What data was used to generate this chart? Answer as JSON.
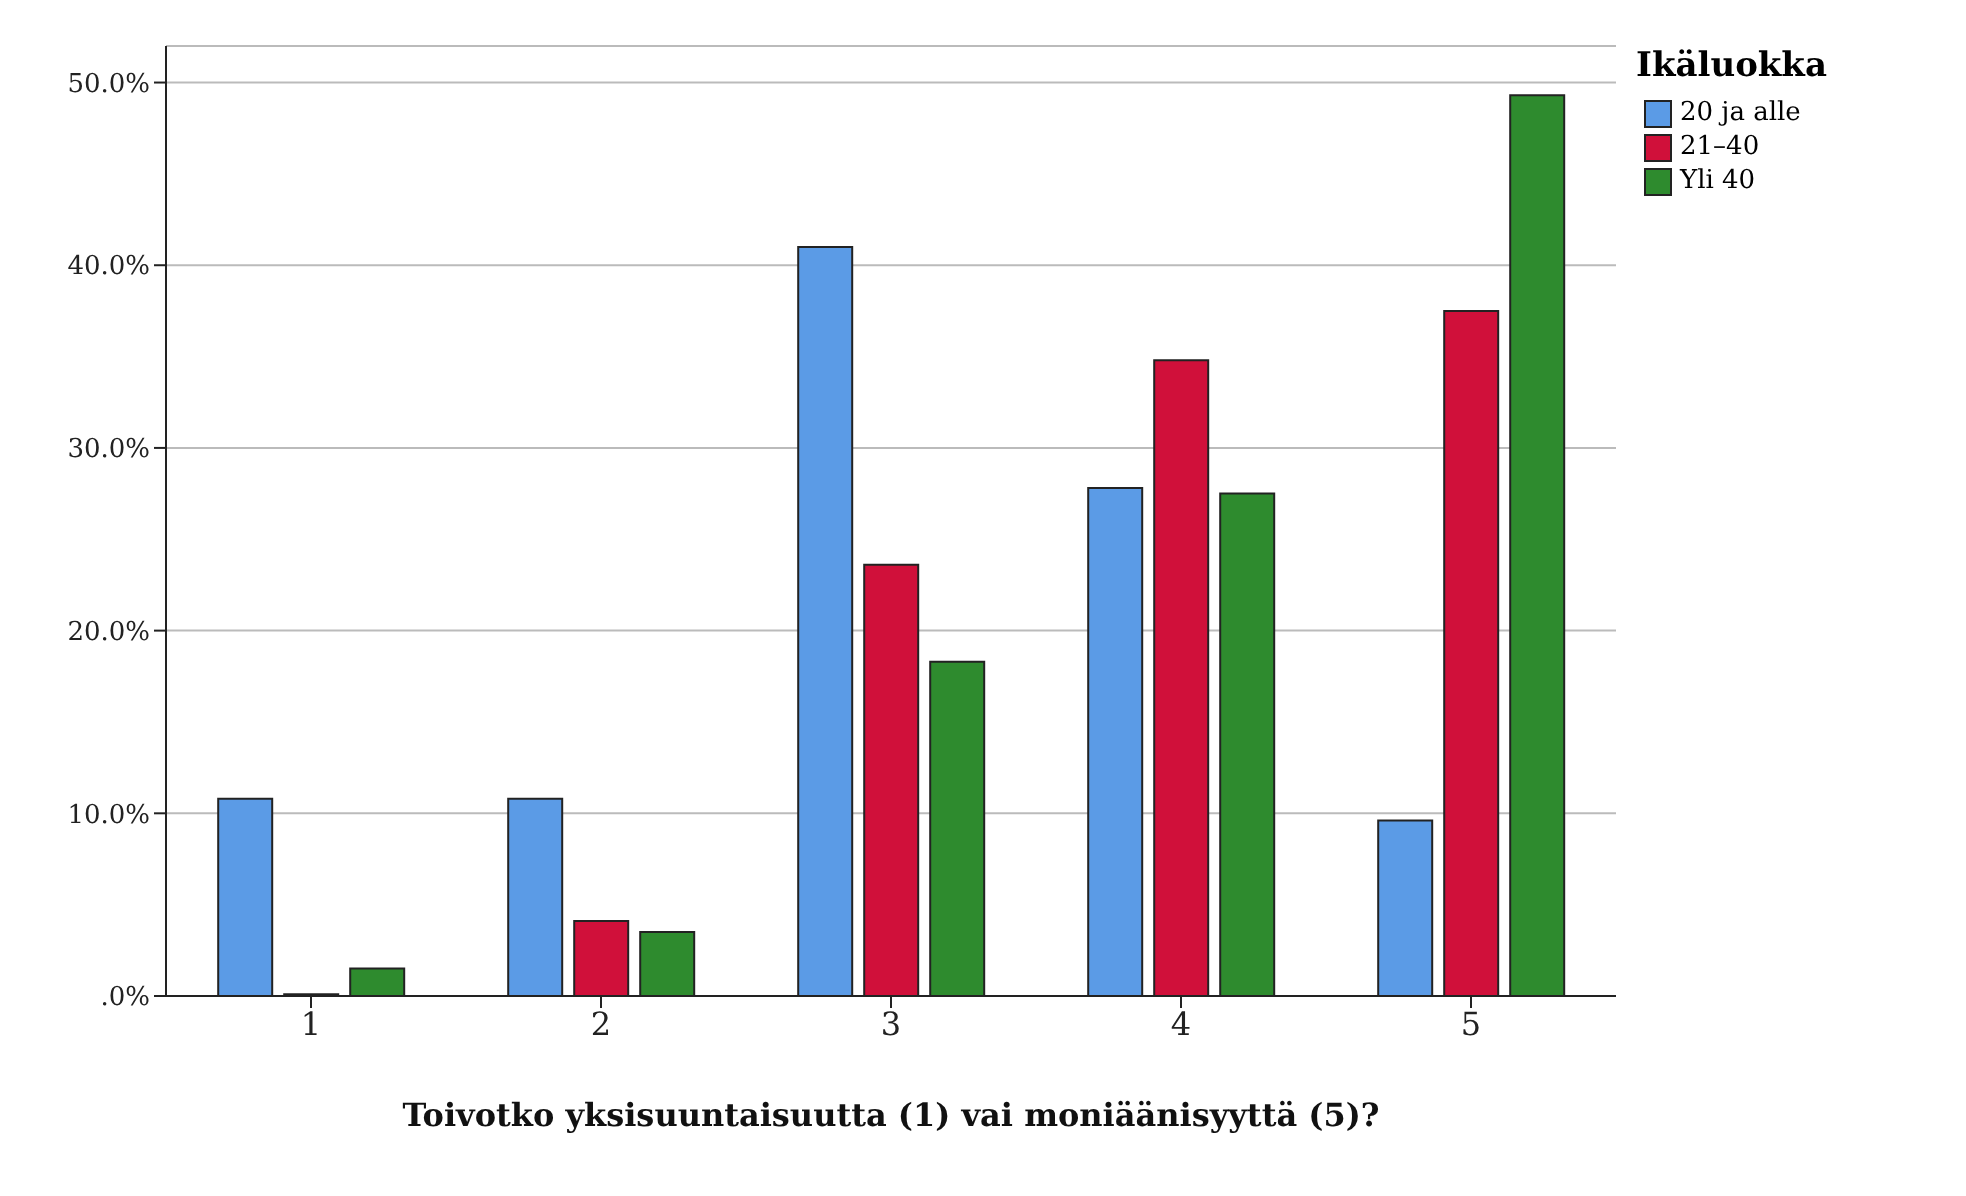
{
  "chart_data": {
    "type": "bar",
    "xlabel": "Toivotko yksisuuntaisuutta (1) vai moniäänisyyttä (5)?",
    "legend_title": "Ikäluokka",
    "categories": [
      "1",
      "2",
      "3",
      "4",
      "5"
    ],
    "series": [
      {
        "name": "20 ja alle",
        "color": "#5b9be6",
        "values": [
          10.8,
          10.8,
          41.0,
          27.8,
          9.6
        ]
      },
      {
        "name": "21–40",
        "color": "#d0103a",
        "values": [
          0.1,
          4.1,
          23.6,
          34.8,
          37.5
        ]
      },
      {
        "name": "Yli 40",
        "color": "#2e8b2e",
        "values": [
          1.5,
          3.5,
          18.3,
          27.5,
          49.3
        ]
      }
    ],
    "ylim": [
      0,
      52
    ],
    "yticks": [
      {
        "value": 0,
        "label": ".0%"
      },
      {
        "value": 10,
        "label": "10.0%"
      },
      {
        "value": 20,
        "label": "20.0%"
      },
      {
        "value": 30,
        "label": "30.0%"
      },
      {
        "value": 40,
        "label": "40.0%"
      },
      {
        "value": 50,
        "label": "50.0%"
      }
    ],
    "grid": "y",
    "legend": "top right"
  }
}
